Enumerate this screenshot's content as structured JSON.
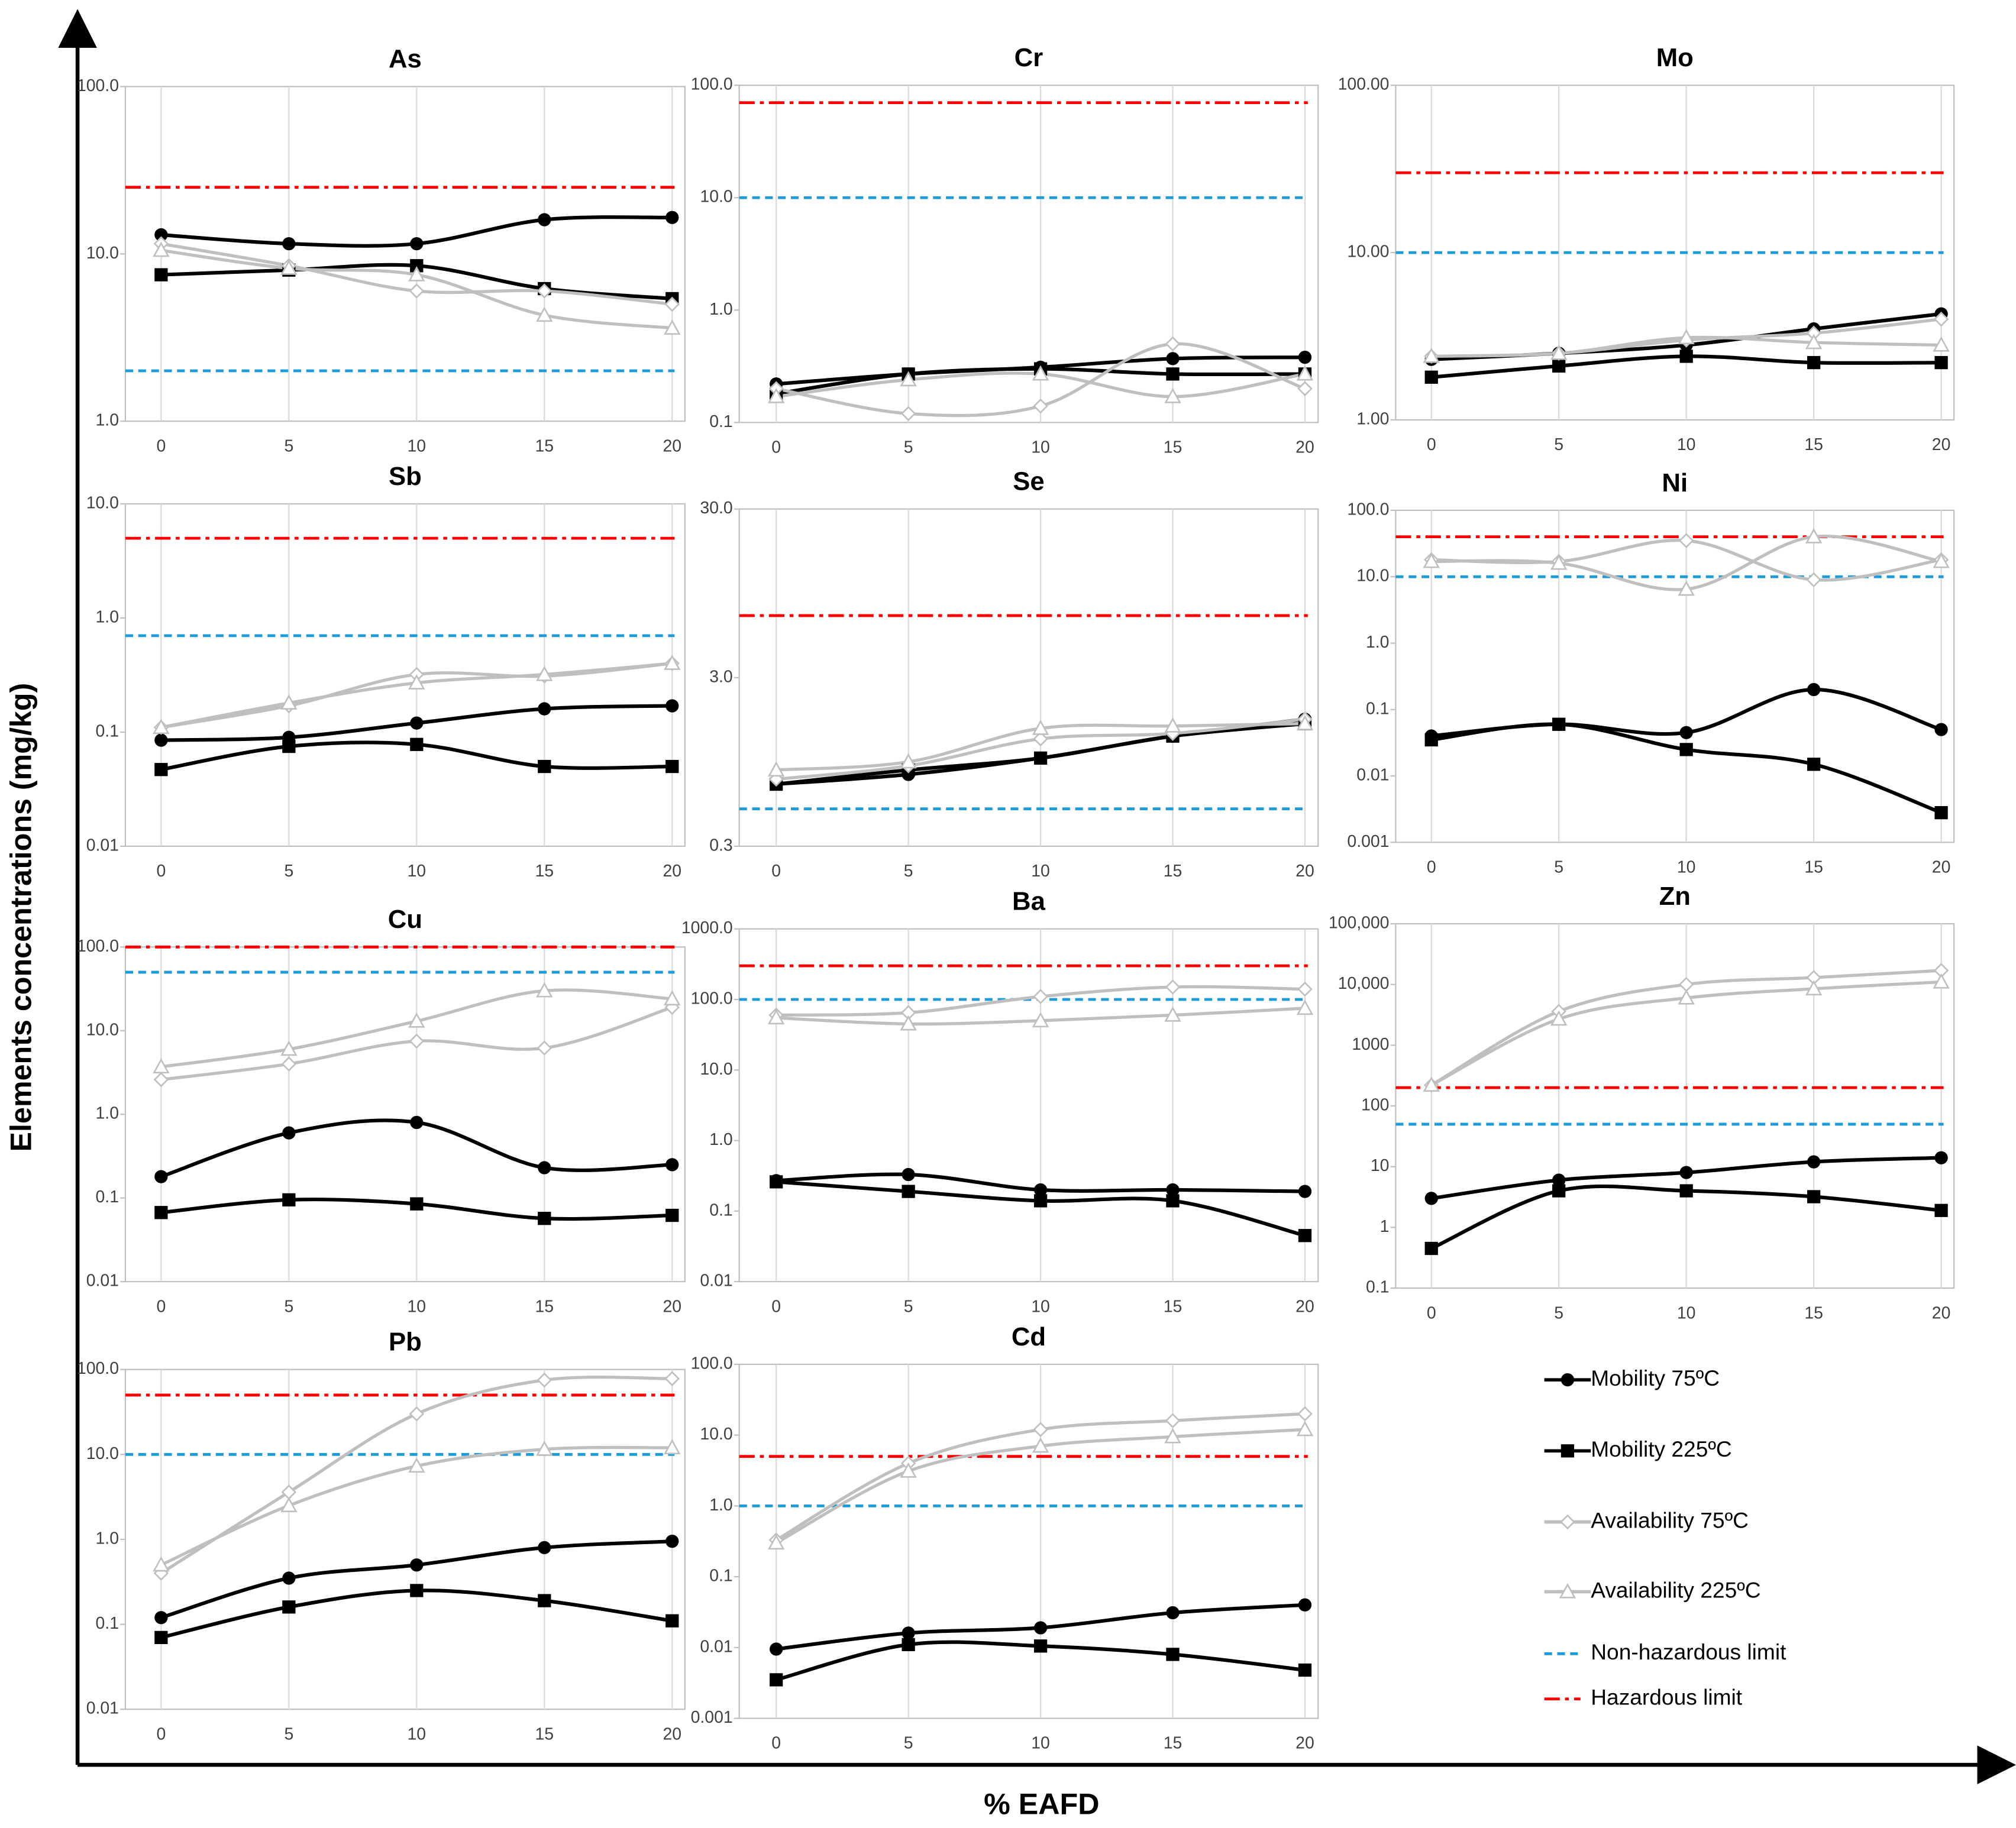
{
  "y_label": "Elements concentrations (mg/kg)",
  "x_label": "% EAFD",
  "legend": {
    "series": [
      {
        "name": "Mobility 75ºC",
        "color": "#000000",
        "marker": "circle",
        "hollow": false
      },
      {
        "name": "Mobility 225ºC",
        "color": "#000000",
        "marker": "square",
        "hollow": false
      },
      {
        "name": "Availability 75ºC",
        "color": "#bfbfbf",
        "marker": "diamond",
        "hollow": true
      },
      {
        "name": "Availability 225ºC",
        "color": "#bfbfbf",
        "marker": "triangle",
        "hollow": true
      }
    ],
    "limits": [
      {
        "name": "Non-hazardous limit",
        "color": "#1f9bd7",
        "dash": "6,4"
      },
      {
        "name": "Hazardous limit",
        "color": "#ff0000",
        "dash": "12,4,3,4"
      }
    ]
  },
  "chart_data": [
    {
      "type": "line",
      "title": "As",
      "x": [
        0,
        5,
        10,
        15,
        20
      ],
      "xlim": [
        -1.4,
        20.5
      ],
      "xticks": [
        0,
        5,
        10,
        15,
        20
      ],
      "log_scale": true,
      "grid": "x",
      "ylim": [
        1,
        100
      ],
      "yticks": [
        {
          "value": 1,
          "label": "1.0"
        },
        {
          "value": 10,
          "label": "10.0"
        },
        {
          "value": 100,
          "label": "100.0"
        }
      ],
      "limits": [
        2,
        25
      ],
      "series": [
        {
          "values": [
            13,
            11.5,
            11.5,
            16,
            16.5
          ]
        },
        {
          "values": [
            7.5,
            8,
            8.5,
            6.2,
            5.4
          ]
        },
        {
          "values": [
            11.5,
            8.5,
            6,
            6,
            5
          ]
        },
        {
          "values": [
            10.5,
            8.2,
            7.5,
            4.3,
            3.6
          ]
        }
      ]
    },
    {
      "type": "line",
      "title": "Cr",
      "x": [
        0,
        5,
        10,
        15,
        20
      ],
      "xlim": [
        -1.4,
        20.5
      ],
      "xticks": [
        0,
        5,
        10,
        15,
        20
      ],
      "log_scale": true,
      "grid": "x",
      "ylim": [
        0.1,
        100
      ],
      "yticks": [
        0.1,
        {
          "value": 1,
          "label": "1.0"
        },
        {
          "value": 10,
          "label": "10.0"
        },
        {
          "value": 100,
          "label": "100.0"
        }
      ],
      "limits": [
        10,
        70
      ],
      "series": [
        {
          "values": [
            0.22,
            0.27,
            0.31,
            0.37,
            0.38
          ]
        },
        {
          "values": [
            0.18,
            0.27,
            0.3,
            0.27,
            0.27
          ]
        },
        {
          "values": [
            0.2,
            0.12,
            0.14,
            0.5,
            0.2
          ]
        },
        {
          "values": [
            0.17,
            0.24,
            0.27,
            0.17,
            0.27
          ]
        }
      ]
    },
    {
      "type": "line",
      "title": "Mo",
      "x": [
        0,
        5,
        10,
        15,
        20
      ],
      "xlim": [
        -1.4,
        20.5
      ],
      "xticks": [
        0,
        5,
        10,
        15,
        20
      ],
      "log_scale": true,
      "grid": "x",
      "ylim": [
        1,
        100
      ],
      "yticks": [
        {
          "value": 1,
          "label": "1.00"
        },
        {
          "value": 10,
          "label": "10.00"
        },
        {
          "value": 100,
          "label": "100.00"
        }
      ],
      "limits": [
        10,
        30
      ],
      "series": [
        {
          "values": [
            2.3,
            2.5,
            2.8,
            3.5,
            4.3
          ]
        },
        {
          "values": [
            1.8,
            2.1,
            2.4,
            2.2,
            2.2
          ]
        },
        {
          "values": [
            2.4,
            2.5,
            3.0,
            3.3,
            4.0
          ]
        },
        {
          "values": [
            2.4,
            2.5,
            3.1,
            2.9,
            2.8
          ]
        }
      ]
    },
    {
      "type": "line",
      "title": "Sb",
      "x": [
        0,
        5,
        10,
        15,
        20
      ],
      "xlim": [
        -1.4,
        20.5
      ],
      "xticks": [
        0,
        5,
        10,
        15,
        20
      ],
      "log_scale": true,
      "grid": "x",
      "ylim": [
        0.01,
        10
      ],
      "yticks": [
        0.01,
        0.1,
        {
          "value": 1,
          "label": "1.0"
        },
        {
          "value": 10,
          "label": "10.0"
        }
      ],
      "limits": [
        0.7,
        5
      ],
      "series": [
        {
          "values": [
            0.085,
            0.09,
            0.12,
            0.16,
            0.17
          ]
        },
        {
          "values": [
            0.047,
            0.075,
            0.078,
            0.05,
            0.05
          ]
        },
        {
          "values": [
            0.11,
            0.17,
            0.32,
            0.31,
            0.4
          ]
        },
        {
          "values": [
            0.11,
            0.18,
            0.27,
            0.32,
            0.4
          ]
        }
      ]
    },
    {
      "type": "line",
      "title": "Se",
      "x": [
        0,
        5,
        10,
        15,
        20
      ],
      "xlim": [
        -1.4,
        20.5
      ],
      "xticks": [
        0,
        5,
        10,
        15,
        20
      ],
      "log_scale": true,
      "grid": "x",
      "ylim": [
        0.3,
        30
      ],
      "yticks": [
        0.3,
        {
          "value": 3,
          "label": "3.0"
        },
        {
          "value": 30,
          "label": "30.0"
        }
      ],
      "limits": [
        0.5,
        7
      ],
      "series": [
        {
          "values": [
            0.7,
            0.8,
            1.0,
            1.35,
            1.7
          ]
        },
        {
          "values": [
            0.7,
            0.85,
            1.0,
            1.35,
            1.6
          ]
        },
        {
          "values": [
            0.75,
            0.9,
            1.3,
            1.4,
            1.7
          ]
        },
        {
          "values": [
            0.85,
            0.95,
            1.5,
            1.55,
            1.6
          ]
        }
      ]
    },
    {
      "type": "line",
      "title": "Ni",
      "x": [
        0,
        5,
        10,
        15,
        20
      ],
      "xlim": [
        -1.4,
        20.5
      ],
      "xticks": [
        0,
        5,
        10,
        15,
        20
      ],
      "log_scale": true,
      "grid": "x",
      "ylim": [
        0.001,
        100
      ],
      "yticks": [
        0.001,
        0.01,
        0.1,
        {
          "value": 1,
          "label": "1.0"
        },
        {
          "value": 10,
          "label": "10.0"
        },
        {
          "value": 100,
          "label": "100.0"
        }
      ],
      "limits": [
        10,
        40
      ],
      "series": [
        {
          "values": [
            0.04,
            0.06,
            0.045,
            0.2,
            0.05
          ]
        },
        {
          "values": [
            0.035,
            0.06,
            0.025,
            0.015,
            0.0028
          ]
        },
        {
          "values": [
            18,
            17,
            35,
            9,
            18
          ]
        },
        {
          "values": [
            17,
            16,
            6.5,
            40,
            17
          ]
        }
      ]
    },
    {
      "type": "line",
      "title": "Cu",
      "x": [
        0,
        5,
        10,
        15,
        20
      ],
      "xlim": [
        -1.4,
        20.5
      ],
      "xticks": [
        0,
        5,
        10,
        15,
        20
      ],
      "log_scale": true,
      "grid": "x",
      "ylim": [
        0.01,
        100
      ],
      "yticks": [
        0.01,
        0.1,
        {
          "value": 1,
          "label": "1.0"
        },
        {
          "value": 10,
          "label": "10.0"
        },
        {
          "value": 100,
          "label": "100.0"
        }
      ],
      "limits": [
        50,
        100
      ],
      "series": [
        {
          "values": [
            0.18,
            0.6,
            0.8,
            0.23,
            0.25
          ]
        },
        {
          "values": [
            0.067,
            0.095,
            0.085,
            0.057,
            0.062
          ]
        },
        {
          "values": [
            2.6,
            4,
            7.5,
            6.2,
            19
          ]
        },
        {
          "values": [
            3.7,
            6,
            13,
            30,
            24
          ]
        }
      ]
    },
    {
      "type": "line",
      "title": "Ba",
      "x": [
        0,
        5,
        10,
        15,
        20
      ],
      "xlim": [
        -1.4,
        20.5
      ],
      "xticks": [
        0,
        5,
        10,
        15,
        20
      ],
      "log_scale": true,
      "grid": "x",
      "ylim": [
        0.01,
        1000
      ],
      "yticks": [
        0.01,
        0.1,
        {
          "value": 1,
          "label": "1.0"
        },
        {
          "value": 10,
          "label": "10.0"
        },
        {
          "value": 100,
          "label": "100.0"
        },
        {
          "value": 1000,
          "label": "1000.0"
        }
      ],
      "limits": [
        100,
        300
      ],
      "series": [
        {
          "values": [
            0.27,
            0.33,
            0.2,
            0.2,
            0.19
          ]
        },
        {
          "values": [
            0.26,
            0.19,
            0.14,
            0.14,
            0.045
          ]
        },
        {
          "values": [
            60,
            65,
            110,
            150,
            140
          ]
        },
        {
          "values": [
            55,
            45,
            50,
            60,
            75
          ]
        }
      ]
    },
    {
      "type": "line",
      "title": "Zn",
      "x": [
        0,
        5,
        10,
        15,
        20
      ],
      "xlim": [
        -1.4,
        20.5
      ],
      "xticks": [
        0,
        5,
        10,
        15,
        20
      ],
      "log_scale": true,
      "grid": "x",
      "ylim": [
        0.1,
        100000
      ],
      "yticks": [
        0.1,
        1,
        10,
        100,
        1000,
        {
          "value": 10000,
          "label": "10,000"
        },
        {
          "value": 100000,
          "label": "100,000"
        }
      ],
      "limits": [
        50,
        200
      ],
      "series": [
        {
          "values": [
            3,
            6,
            8,
            12,
            14
          ]
        },
        {
          "values": [
            0.45,
            4,
            4,
            3.2,
            1.9
          ]
        },
        {
          "values": [
            220,
            3600,
            10000,
            13000,
            17000
          ]
        },
        {
          "values": [
            220,
            2700,
            6000,
            8500,
            11000
          ]
        }
      ]
    },
    {
      "type": "line",
      "title": "Pb",
      "x": [
        0,
        5,
        10,
        15,
        20
      ],
      "xlim": [
        -1.4,
        20.5
      ],
      "xticks": [
        0,
        5,
        10,
        15,
        20
      ],
      "log_scale": true,
      "grid": "x",
      "ylim": [
        0.01,
        100
      ],
      "yticks": [
        0.01,
        0.1,
        {
          "value": 1,
          "label": "1.0"
        },
        {
          "value": 10,
          "label": "10.0"
        },
        {
          "value": 100,
          "label": "100.0"
        }
      ],
      "limits": [
        10,
        50
      ],
      "series": [
        {
          "values": [
            0.12,
            0.35,
            0.5,
            0.8,
            0.95
          ]
        },
        {
          "values": [
            0.07,
            0.16,
            0.25,
            0.19,
            0.11
          ]
        },
        {
          "values": [
            0.4,
            3.6,
            30,
            75,
            78
          ]
        },
        {
          "values": [
            0.5,
            2.5,
            7.3,
            11.5,
            12
          ]
        }
      ]
    },
    {
      "type": "line",
      "title": "Cd",
      "x": [
        0,
        5,
        10,
        15,
        20
      ],
      "xlim": [
        -1.4,
        20.5
      ],
      "xticks": [
        0,
        5,
        10,
        15,
        20
      ],
      "log_scale": true,
      "grid": "x",
      "ylim": [
        0.001,
        100
      ],
      "yticks": [
        0.001,
        0.01,
        0.1,
        {
          "value": 1,
          "label": "1.0"
        },
        {
          "value": 10,
          "label": "10.0"
        },
        {
          "value": 100,
          "label": "100.0"
        }
      ],
      "limits": [
        1,
        5
      ],
      "series": [
        {
          "values": [
            0.0095,
            0.016,
            0.019,
            0.031,
            0.04
          ]
        },
        {
          "values": [
            0.0035,
            0.011,
            0.0105,
            0.008,
            0.0048
          ]
        },
        {
          "values": [
            0.33,
            4,
            12,
            16,
            20
          ]
        },
        {
          "values": [
            0.3,
            3.1,
            7,
            9.5,
            12
          ]
        }
      ]
    }
  ]
}
